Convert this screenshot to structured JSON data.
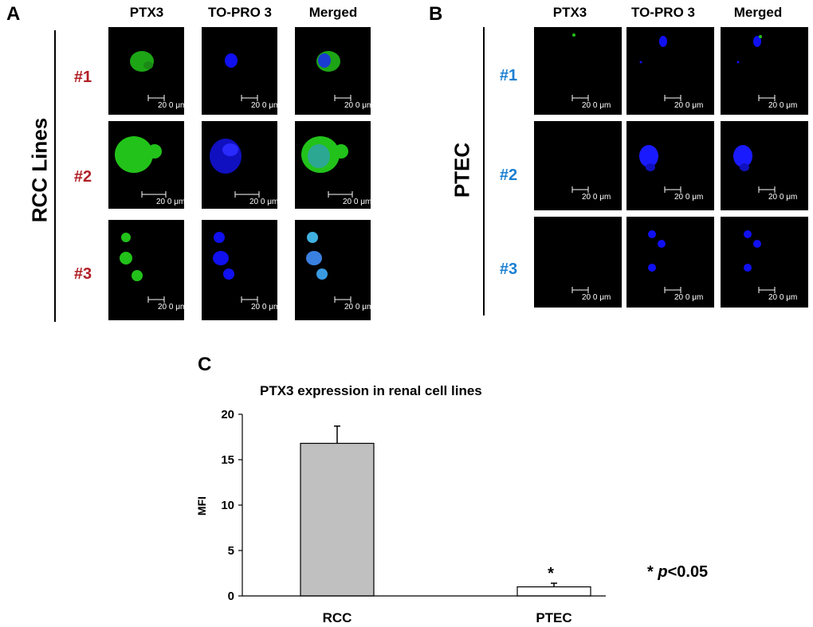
{
  "panels": {
    "a": {
      "letter": "A",
      "group_title": "RCC Lines",
      "columns": [
        "PTX3",
        "TO-PRO 3",
        "Merged"
      ],
      "rows": [
        "#1",
        "#2",
        "#3"
      ]
    },
    "b": {
      "letter": "B",
      "group_title": "PTEC",
      "columns": [
        "PTX3",
        "TO-PRO 3",
        "Merged"
      ],
      "rows": [
        "#1",
        "#2",
        "#3"
      ]
    },
    "c": {
      "letter": "C"
    }
  },
  "scale_bar_label": "20 0 μm",
  "colors": {
    "rcc_label": "#b01f24",
    "ptec_label": "#1b7fd1",
    "ptx3_stain": "#22c21a",
    "nuclear_stain": "#1010f0",
    "bar_rcc": "#c0c0c0",
    "bar_ptec": "#ffffff"
  },
  "chart_data": {
    "type": "bar",
    "title": "PTX3 expression in renal cell lines",
    "categories": [
      "RCC",
      "PTEC"
    ],
    "values": [
      16.8,
      1.0
    ],
    "errors": [
      1.9,
      0.4
    ],
    "ylabel": "MFI",
    "xlabel": "",
    "ylim": [
      0,
      20
    ],
    "yticks": [
      "0",
      "5",
      "10",
      "15",
      "20"
    ],
    "significance_marker": "*",
    "note": {
      "star": "*",
      "p": "p",
      "rest": "<0.05"
    }
  }
}
